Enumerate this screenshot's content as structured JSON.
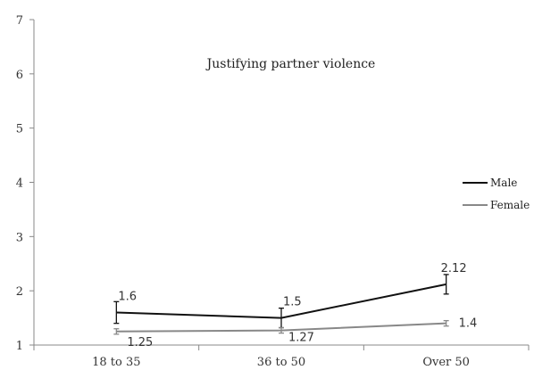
{
  "chart_data": {
    "type": "line",
    "title": "Justifying partner violence",
    "categories": [
      "18 to 35",
      "36 to 50",
      "Over 50"
    ],
    "ylim": [
      1,
      7
    ],
    "yticks": [
      "1",
      "2",
      "3",
      "4",
      "5",
      "6",
      "7"
    ],
    "grid": false,
    "legend": "right",
    "series": [
      {
        "name": "Male",
        "color": "#111111",
        "values": [
          1.6,
          1.5,
          2.12
        ],
        "labels": [
          "1.6",
          "1.5",
          "2.12"
        ],
        "error": [
          0.2,
          0.18,
          0.18
        ]
      },
      {
        "name": "Female",
        "color": "#888888",
        "values": [
          1.25,
          1.27,
          1.4
        ],
        "labels": [
          "1.25",
          "1.27",
          "1.4"
        ],
        "error": [
          0.05,
          0.05,
          0.05
        ]
      }
    ]
  }
}
